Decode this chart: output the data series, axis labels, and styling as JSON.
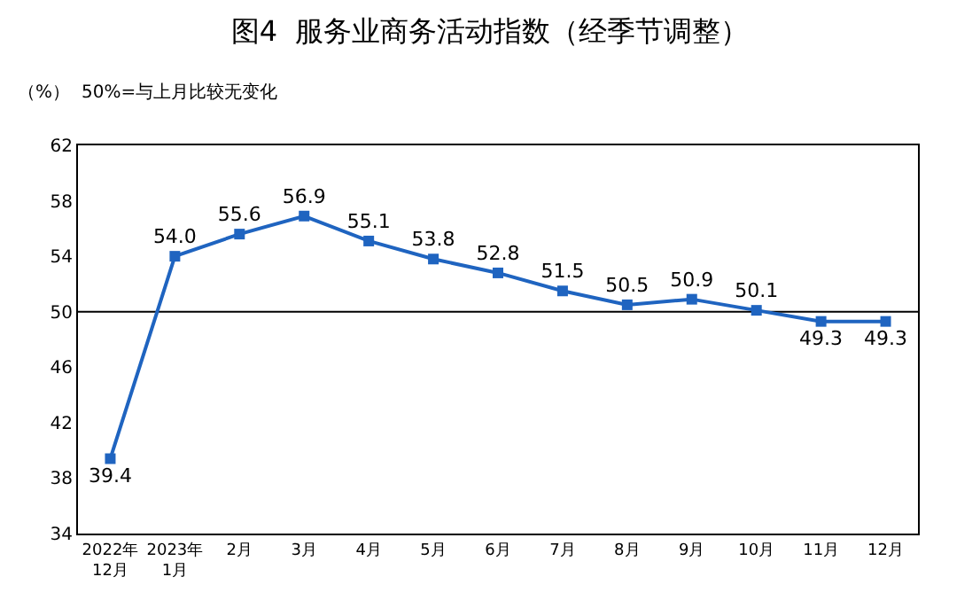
{
  "chart_data": {
    "type": "line",
    "title": "图4  服务业商务活动指数（经季节调整）",
    "ylabel": "（%）",
    "annotations": [
      "50%=与上月比较无变化"
    ],
    "categories": [
      "2022年\n12月",
      "2023年\n1月",
      "2月",
      "3月",
      "4月",
      "5月",
      "6月",
      "7月",
      "8月",
      "9月",
      "10月",
      "11月",
      "12月"
    ],
    "series": [
      {
        "color": "#1f64c0",
        "values": [
          39.4,
          54.0,
          55.6,
          56.9,
          55.1,
          53.8,
          52.8,
          51.5,
          50.5,
          50.9,
          50.1,
          49.3,
          49.3
        ],
        "value_labels": [
          "39.4",
          "54.0",
          "55.6",
          "56.9",
          "55.1",
          "53.8",
          "52.8",
          "51.5",
          "50.5",
          "50.9",
          "50.1",
          "49.3",
          "49.3"
        ]
      }
    ],
    "ylim": [
      34,
      62
    ],
    "yticks": [
      34,
      38,
      42,
      46,
      50,
      54,
      58,
      62
    ],
    "ref_lines": [
      {
        "axis": "y",
        "value": 50,
        "color": "#000000"
      }
    ],
    "marker": "square",
    "grid": false,
    "legend": false
  }
}
